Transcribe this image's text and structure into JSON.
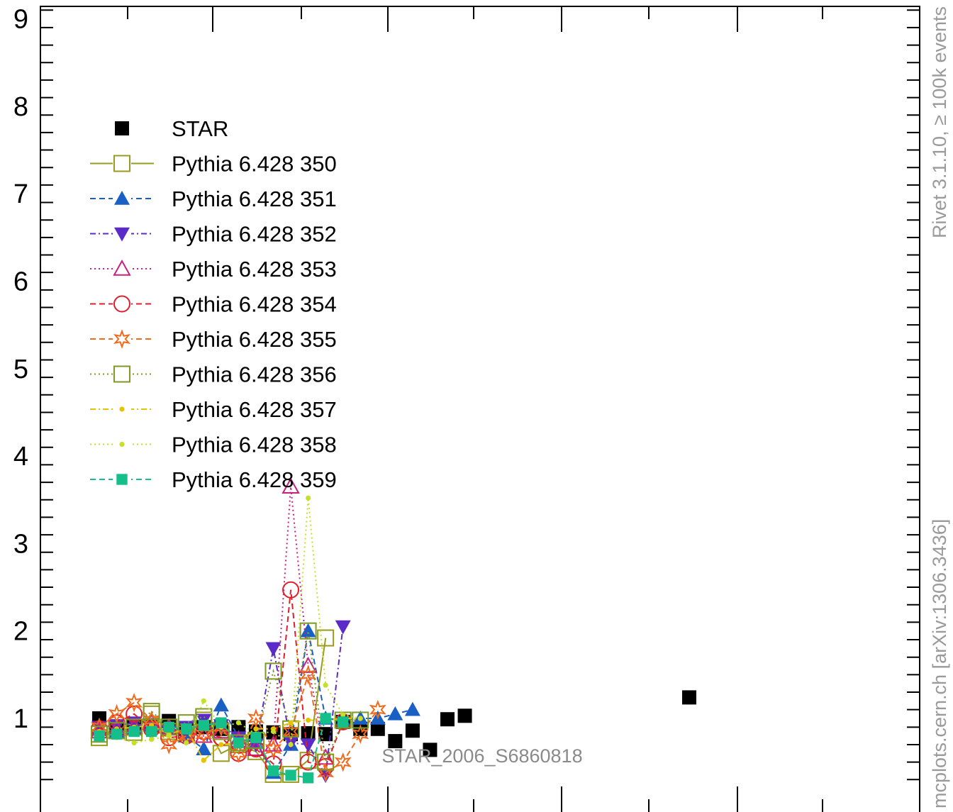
{
  "side_labels": {
    "right_top": "Rivet 3.1.10, ≥ 100k events",
    "right_bottom": "mcplots.cern.ch [arXiv:1306.3436]"
  },
  "watermark": "STAR_2006_S6860818",
  "colors": {
    "STAR": "#000000",
    "Pythia 6.428 350": "#999b21",
    "Pythia 6.428 351": "#1a5fc4",
    "Pythia 6.428 352": "#5a2bc8",
    "Pythia 6.428 353": "#c9207f",
    "Pythia 6.428 354": "#e01e2c",
    "Pythia 6.428 355": "#f26a1b",
    "Pythia 6.428 356": "#7d9a22",
    "Pythia 6.428 357": "#e6c300",
    "Pythia 6.428 358": "#c6e02a",
    "Pythia 6.428 359": "#14bf8a"
  },
  "chart_data": {
    "type": "scatter",
    "title": "",
    "xlabel": "",
    "ylabel": "",
    "ylim": [
      0.3,
      9.3
    ],
    "y_ticks": [
      1,
      2,
      3,
      4,
      5,
      6,
      7,
      8,
      9
    ],
    "x_index": [
      0,
      1,
      2,
      3,
      4,
      5,
      6,
      7,
      8,
      9,
      10,
      11,
      12,
      13,
      14,
      15,
      16,
      17,
      18,
      19,
      20,
      21,
      22,
      23,
      24,
      25
    ],
    "legend_position": "top-left",
    "grid": false,
    "series": [
      {
        "name": "STAR",
        "marker": "square-filled",
        "line": "none",
        "values": [
          1.0,
          0.88,
          0.9,
          0.92,
          0.97,
          0.88,
          0.9,
          0.88,
          0.9,
          0.85,
          0.84,
          0.82,
          0.83,
          0.82,
          0.96,
          0.88,
          0.88,
          0.74,
          0.86,
          0.64,
          0.99,
          1.03,
          1.24
        ]
      },
      {
        "name": "Pythia 6.428 350",
        "marker": "square-open",
        "line": "solid",
        "values": [
          0.78,
          0.86,
          0.84,
          1.05,
          0.85,
          0.82,
          0.98,
          0.6,
          0.7,
          0.62,
          0.36,
          0.36,
          0.52,
          1.92
        ]
      },
      {
        "name": "Pythia 6.428 351",
        "marker": "triangle-up-filled",
        "line": "dashed",
        "values": [
          0.88,
          0.85,
          0.9,
          0.92,
          0.88,
          0.8,
          0.65,
          1.15,
          0.78,
          0.72,
          0.38,
          0.7,
          2.0,
          1.0,
          0.98,
          1.0,
          1.0,
          1.05,
          1.1
        ]
      },
      {
        "name": "Pythia 6.428 352",
        "marker": "triangle-down-filled",
        "line": "dashdot",
        "values": [
          0.9,
          0.92,
          0.95,
          0.88,
          0.85,
          0.9,
          0.98,
          0.92,
          0.78,
          0.7,
          1.8,
          0.72,
          0.7,
          0.35,
          2.05
        ]
      },
      {
        "name": "Pythia 6.428 353",
        "marker": "triangle-up-open",
        "line": "dotted",
        "values": [
          0.85,
          0.88,
          0.9,
          0.95,
          0.9,
          0.82,
          0.8,
          0.85,
          0.75,
          0.65,
          0.7,
          3.65,
          1.6,
          0.55
        ]
      },
      {
        "name": "Pythia 6.428 354",
        "marker": "circle-open",
        "line": "dashed",
        "values": [
          0.88,
          0.95,
          1.05,
          0.88,
          0.78,
          0.8,
          0.85,
          0.78,
          0.6,
          0.65,
          0.48,
          2.47,
          0.5,
          0.45,
          0.96
        ]
      },
      {
        "name": "Pythia 6.428 355",
        "marker": "star-open",
        "line": "dashed",
        "values": [
          0.9,
          1.05,
          1.18,
          0.98,
          0.7,
          0.8,
          0.82,
          0.9,
          0.6,
          1.0,
          0.65,
          0.85,
          1.5,
          0.38,
          0.5,
          0.82,
          1.1
        ]
      },
      {
        "name": "Pythia 6.428 356",
        "marker": "square-open",
        "line": "dotted",
        "values": [
          0.82,
          0.86,
          0.9,
          1.08,
          0.9,
          0.95,
          1.02,
          0.85,
          0.72,
          0.75,
          1.54,
          0.88,
          2.0,
          0.5,
          0.98,
          0.98
        ]
      },
      {
        "name": "Pythia 6.428 357",
        "marker": "dot",
        "line": "dashdot",
        "values": [
          0.85,
          0.88,
          0.9,
          0.92,
          0.82,
          0.88,
          0.52,
          0.7,
          0.72,
          0.88,
          0.88,
          0.95,
          0.98,
          0.98,
          1.0,
          1.0
        ]
      },
      {
        "name": "Pythia 6.428 358",
        "marker": "dot",
        "line": "dotted",
        "values": [
          0.82,
          0.78,
          0.72,
          0.76,
          0.8,
          0.72,
          1.2,
          0.9,
          0.95,
          0.82,
          0.85,
          0.7,
          3.52,
          1.38,
          1.04,
          1.0
        ]
      },
      {
        "name": "Pythia 6.428 359",
        "marker": "square-filled-small",
        "line": "dashed",
        "values": [
          0.8,
          0.82,
          0.85,
          0.85,
          0.9,
          0.88,
          0.92,
          0.95,
          0.72,
          0.78,
          0.4,
          0.35,
          0.32,
          1.0,
          0.96
        ]
      }
    ]
  }
}
